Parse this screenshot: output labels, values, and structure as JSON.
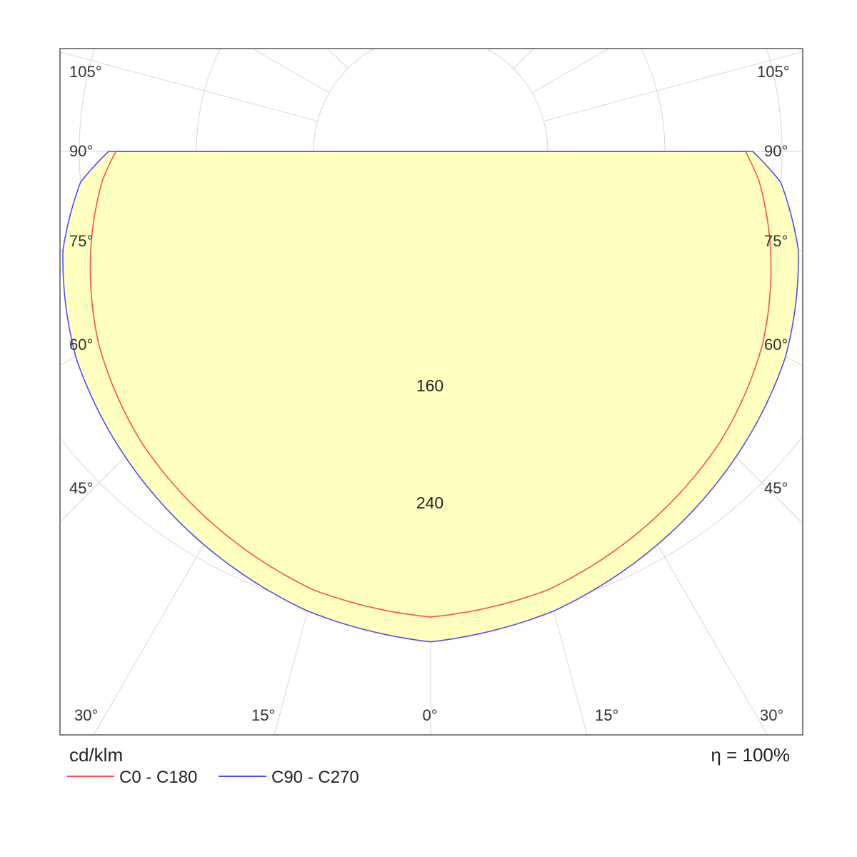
{
  "chart_data": {
    "type": "polar",
    "unit": "cd/klm",
    "efficiency": "η = 100%",
    "ring_values": [
      80,
      160,
      240,
      320
    ],
    "ring_labels": [
      "160",
      "240"
    ],
    "angle_labels": {
      "left": [
        "105°",
        "90°",
        "75°",
        "60°",
        "45°",
        "30°",
        "15°"
      ],
      "center": "0°",
      "right": [
        "15°",
        "30°",
        "45°",
        "60°",
        "75°",
        "90°",
        "105°"
      ]
    },
    "series": [
      {
        "name": "C0 - C180",
        "color": "#ff4d4d",
        "gamma": [
          0,
          15,
          30,
          45,
          60,
          75,
          85,
          90
        ],
        "intensity": [
          318,
          310,
          295,
          280,
          262,
          240,
          225,
          215
        ]
      },
      {
        "name": "C90 - C270",
        "color": "#4d4dff",
        "gamma": [
          0,
          15,
          30,
          45,
          60,
          75,
          85,
          90
        ],
        "intensity": [
          335,
          325,
          310,
          295,
          280,
          260,
          240,
          220
        ]
      }
    ],
    "fill_color": "#ffffc0",
    "grid": true
  }
}
